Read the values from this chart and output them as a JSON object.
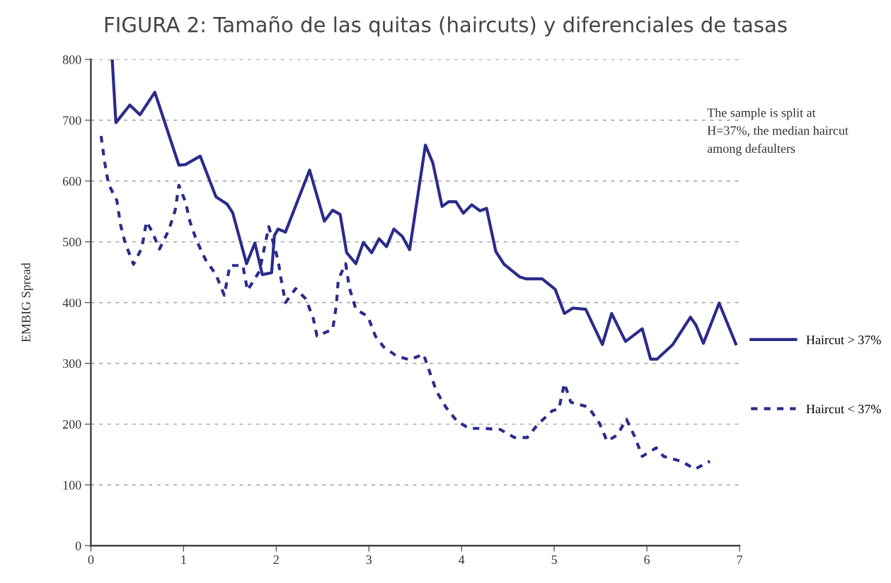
{
  "chart_data": {
    "type": "line",
    "title": "FIGURA 2: Tamaño de las quitas (haircuts) y diferenciales de tasas",
    "ylabel": "EMBIG Spread",
    "series": [
      {
        "name": "Haircut > 37%",
        "color": "#2b2b8c",
        "line_style": "solid",
        "x": [
          0.23,
          0.27,
          0.42,
          0.53,
          0.69,
          0.95,
          1.02,
          1.18,
          1.35,
          1.47,
          1.53,
          1.68,
          1.77,
          1.85,
          1.95,
          1.98,
          2.02,
          2.1,
          2.36,
          2.52,
          2.61,
          2.69,
          2.76,
          2.86,
          2.94,
          3.03,
          3.11,
          3.19,
          3.27,
          3.36,
          3.44,
          3.61,
          3.69,
          3.79,
          3.86,
          3.94,
          4.02,
          4.11,
          4.2,
          4.27,
          4.37,
          4.46,
          4.63,
          4.7,
          4.87,
          5.01,
          5.11,
          5.2,
          5.34,
          5.52,
          5.62,
          5.77,
          5.95,
          6.04,
          6.11,
          6.28,
          6.47,
          6.53,
          6.61,
          6.78,
          6.96
        ],
        "values": [
          800,
          696,
          725,
          709,
          746,
          626,
          627,
          641,
          574,
          562,
          548,
          464,
          498,
          446,
          449,
          510,
          521,
          516,
          618,
          534,
          552,
          545,
          482,
          464,
          499,
          482,
          505,
          492,
          521,
          509,
          487,
          659,
          630,
          558,
          566,
          566,
          547,
          561,
          551,
          555,
          484,
          463,
          442,
          439,
          439,
          422,
          382,
          391,
          389,
          331,
          382,
          336,
          357,
          307,
          307,
          331,
          376,
          363,
          333,
          399,
          332
        ]
      },
      {
        "name": "Haircut < 37%",
        "color": "#2b2b8c",
        "line_style": "dashed",
        "x": [
          0.11,
          0.15,
          0.19,
          0.28,
          0.32,
          0.37,
          0.46,
          0.55,
          0.6,
          0.66,
          0.74,
          0.84,
          0.91,
          0.95,
          1.02,
          1.07,
          1.14,
          1.24,
          1.35,
          1.44,
          1.5,
          1.64,
          1.69,
          1.82,
          1.92,
          2.02,
          2.05,
          2.1,
          2.21,
          2.32,
          2.4,
          2.44,
          2.61,
          2.65,
          2.67,
          2.75,
          2.79,
          2.86,
          2.99,
          3.07,
          3.16,
          3.3,
          3.44,
          3.59,
          3.66,
          3.73,
          3.83,
          3.95,
          4.08,
          4.25,
          4.42,
          4.57,
          4.71,
          4.82,
          4.98,
          5.05,
          5.11,
          5.18,
          5.37,
          5.49,
          5.57,
          5.68,
          5.78,
          5.87,
          5.95,
          6.1,
          6.18,
          6.37,
          6.52,
          6.68
        ],
        "values": [
          674,
          630,
          595,
          568,
          528,
          498,
          463,
          490,
          533,
          517,
          488,
          519,
          552,
          593,
          566,
          533,
          502,
          470,
          446,
          412,
          461,
          461,
          420,
          452,
          525,
          470,
          441,
          400,
          423,
          406,
          374,
          345,
          356,
          397,
          438,
          464,
          424,
          389,
          377,
          345,
          327,
          312,
          306,
          315,
          284,
          254,
          228,
          205,
          193,
          193,
          191,
          178,
          178,
          199,
          222,
          225,
          267,
          236,
          228,
          201,
          172,
          182,
          208,
          179,
          147,
          161,
          147,
          139,
          126,
          139
        ]
      }
    ],
    "xlim": [
      0,
      7
    ],
    "xticks": [
      0,
      1,
      2,
      3,
      4,
      5,
      6,
      7
    ],
    "ylim": [
      0,
      800
    ],
    "yticks": [
      0,
      100,
      200,
      300,
      400,
      500,
      600,
      700,
      800
    ],
    "grid": "y",
    "legend": "right",
    "marker": "none",
    "annotations": [
      "The sample is split at\nH=37%, the median haircut\namong defaulters"
    ]
  }
}
